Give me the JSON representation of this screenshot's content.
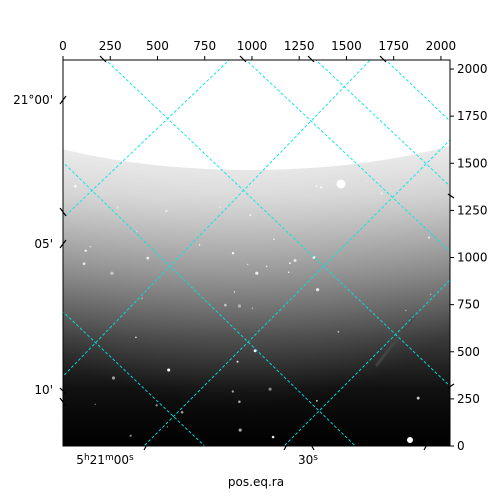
{
  "chart_data": {
    "type": "image",
    "grid": true,
    "grid_color": "#00e5e5",
    "colormap": "grayscale",
    "xlabel_bottom": "pos.eq.ra",
    "pixel_axis": {
      "x_range": [
        0,
        2048
      ],
      "y_range": [
        0,
        2048
      ],
      "x_ticks": [
        0,
        250,
        500,
        750,
        1000,
        1250,
        1500,
        1750,
        2000
      ],
      "y_ticks": [
        0,
        250,
        500,
        750,
        1000,
        1250,
        1500,
        1750,
        2000
      ]
    },
    "x_tick_labels": [
      "0",
      "250",
      "500",
      "750",
      "1000",
      "1250",
      "1500",
      "1750",
      "2000"
    ],
    "y_tick_labels": [
      "0",
      "250",
      "500",
      "750",
      "1000",
      "1250",
      "1500",
      "1750",
      "2000"
    ],
    "ra_tick_labels": [
      "5h21m00s",
      "30s"
    ],
    "dec_tick_labels": [
      "21°00'",
      "05'",
      "10'"
    ]
  }
}
